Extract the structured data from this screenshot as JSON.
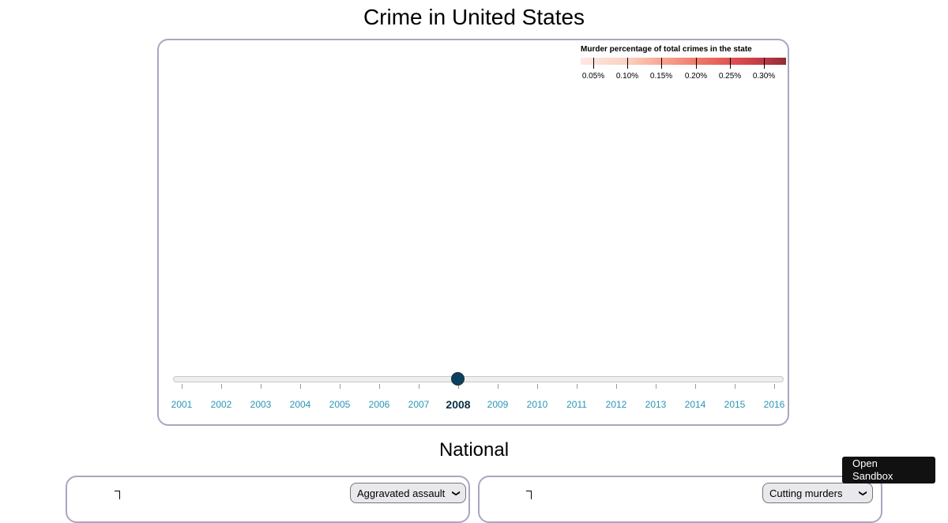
{
  "title": "Crime in United States",
  "legend": {
    "title": "Murder percentage of total crimes in the state",
    "labels": [
      "0.05%",
      "0.10%",
      "0.15%",
      "0.20%",
      "0.25%",
      "0.30%"
    ],
    "colors": [
      "#fde9e2",
      "#fcd2c2",
      "#f8a490",
      "#ee7766",
      "#dd4c4f",
      "#c03b45",
      "#8e2e36"
    ]
  },
  "slider": {
    "years": [
      "2001",
      "2002",
      "2003",
      "2004",
      "2005",
      "2006",
      "2007",
      "2008",
      "2009",
      "2010",
      "2011",
      "2012",
      "2013",
      "2014",
      "2015",
      "2016"
    ],
    "selected": "2008",
    "handle_color": "#0b4160",
    "label_color": "#2a95b6"
  },
  "national": {
    "title": "National",
    "left_select": "Aggravated assault",
    "right_select": "Cutting murders"
  },
  "sandbox_button": {
    "line1": "Open",
    "line2": "Sandbox"
  }
}
